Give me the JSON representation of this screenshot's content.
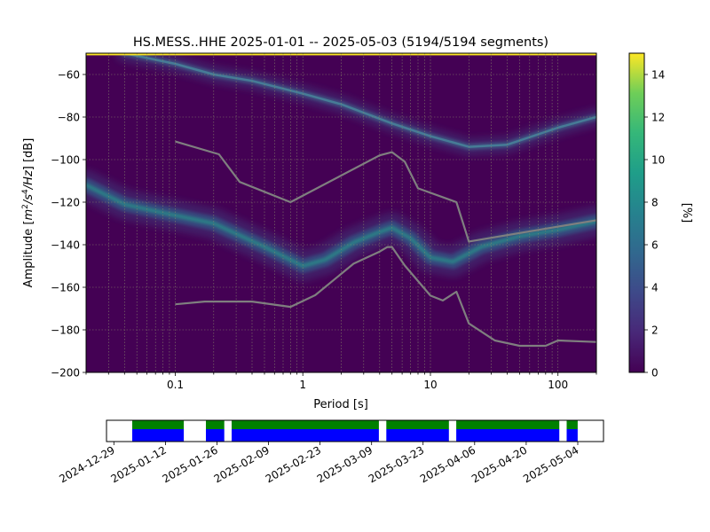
{
  "chart_data": [
    {
      "type": "heatmap",
      "title": "HS.MESS..HHE   2025-01-01 -- 2025-05-03  (5194/5194 segments)",
      "xlabel": "Period [s]",
      "ylabel_parts": [
        "Amplitude [",
        "m",
        "2",
        "/s",
        "4",
        "/Hz",
        "] [dB]"
      ],
      "x_scale": "log",
      "xlim": [
        0.02,
        200
      ],
      "ylim": [
        -200,
        -50
      ],
      "x_ticks": [
        0.1,
        1,
        10,
        100
      ],
      "x_tick_labels": [
        "0.1",
        "1",
        "10",
        "100"
      ],
      "y_ticks": [
        -60,
        -80,
        -100,
        -120,
        -140,
        -160,
        -180,
        -200
      ],
      "y_tick_labels": [
        "−60",
        "−80",
        "−100",
        "−120",
        "−140",
        "−160",
        "−180",
        "−200"
      ],
      "grid": true,
      "colorbar": {
        "label": "[%]",
        "range": [
          0,
          15
        ],
        "ticks": [
          0,
          2,
          4,
          6,
          8,
          10,
          12,
          14
        ],
        "tick_labels": [
          "0",
          "2",
          "4",
          "6",
          "8",
          "10",
          "12",
          "14"
        ],
        "colormap": "viridis"
      },
      "psd_modes": [
        {
          "name": "",
          "points": [
            [
              0.02,
              -112
            ],
            [
              0.04,
              -121
            ],
            [
              0.08,
              -125
            ],
            [
              0.2,
              -130
            ],
            [
              0.5,
              -141
            ],
            [
              1,
              -150
            ],
            [
              1.5,
              -147
            ],
            [
              2.5,
              -139
            ],
            [
              4,
              -134
            ],
            [
              5,
              -132
            ],
            [
              7,
              -137
            ],
            [
              10,
              -146
            ],
            [
              15,
              -148
            ],
            [
              25,
              -141
            ],
            [
              50,
              -136
            ],
            [
              100,
              -133
            ],
            [
              200,
              -129
            ]
          ]
        },
        {
          "name": "",
          "points": [
            [
              0.04,
              -50
            ],
            [
              0.1,
              -55
            ],
            [
              0.2,
              -60
            ],
            [
              0.4,
              -63
            ],
            [
              1,
              -69
            ],
            [
              2,
              -74
            ],
            [
              5,
              -83
            ],
            [
              10,
              -89
            ],
            [
              20,
              -94
            ],
            [
              40,
              -93
            ],
            [
              100,
              -85
            ],
            [
              200,
              -80
            ]
          ]
        }
      ],
      "reference_curves": [
        {
          "name": "",
          "points": [
            [
              0.1,
              -91.5
            ],
            [
              0.22,
              -97.5
            ],
            [
              0.32,
              -110.5
            ],
            [
              0.8,
              -120
            ],
            [
              4,
              -98
            ],
            [
              5,
              -96.5
            ],
            [
              6.3,
              -101
            ],
            [
              8,
              -113.5
            ],
            [
              16,
              -120
            ],
            [
              20,
              -138.5
            ],
            [
              100,
              -131.5
            ],
            [
              200,
              -128.5
            ]
          ]
        },
        {
          "name": "",
          "points": [
            [
              0.1,
              -168
            ],
            [
              0.17,
              -166.7
            ],
            [
              0.4,
              -166.7
            ],
            [
              0.8,
              -169.2
            ],
            [
              1.25,
              -163.7
            ],
            [
              2.5,
              -148.9
            ],
            [
              4,
              -143.2
            ],
            [
              4.6,
              -141.1
            ],
            [
              5,
              -141.1
            ],
            [
              6.3,
              -149.8
            ],
            [
              10,
              -163.9
            ],
            [
              12.5,
              -166.2
            ],
            [
              16,
              -162.1
            ],
            [
              20,
              -177
            ],
            [
              32,
              -185
            ],
            [
              50,
              -187.5
            ],
            [
              80,
              -187.5
            ],
            [
              100,
              -185
            ],
            [
              200,
              -185.7
            ]
          ]
        }
      ],
      "top_band": {
        "color": "#fde725",
        "value_db": -51
      }
    },
    {
      "type": "timeline",
      "x_tick_labels": [
        "2024-12-29",
        "2025-01-12",
        "2025-01-26",
        "2025-02-09",
        "2025-02-23",
        "2025-03-09",
        "2025-03-23",
        "2025-04-06",
        "2025-04-20",
        "2025-05-04"
      ],
      "xlim": [
        "2024-12-27",
        "2025-05-11"
      ],
      "data_availability": [
        [
          "2025-01-03",
          "2025-01-17"
        ],
        [
          "2025-01-23",
          "2025-01-28"
        ],
        [
          "2025-01-30",
          "2025-03-11"
        ],
        [
          "2025-03-13",
          "2025-03-30"
        ],
        [
          "2025-04-01",
          "2025-04-29"
        ],
        [
          "2025-05-01",
          "2025-05-04"
        ]
      ],
      "colors": {
        "data": "#008000",
        "psd": "#0000ff",
        "gap": "#ffffff"
      }
    }
  ]
}
